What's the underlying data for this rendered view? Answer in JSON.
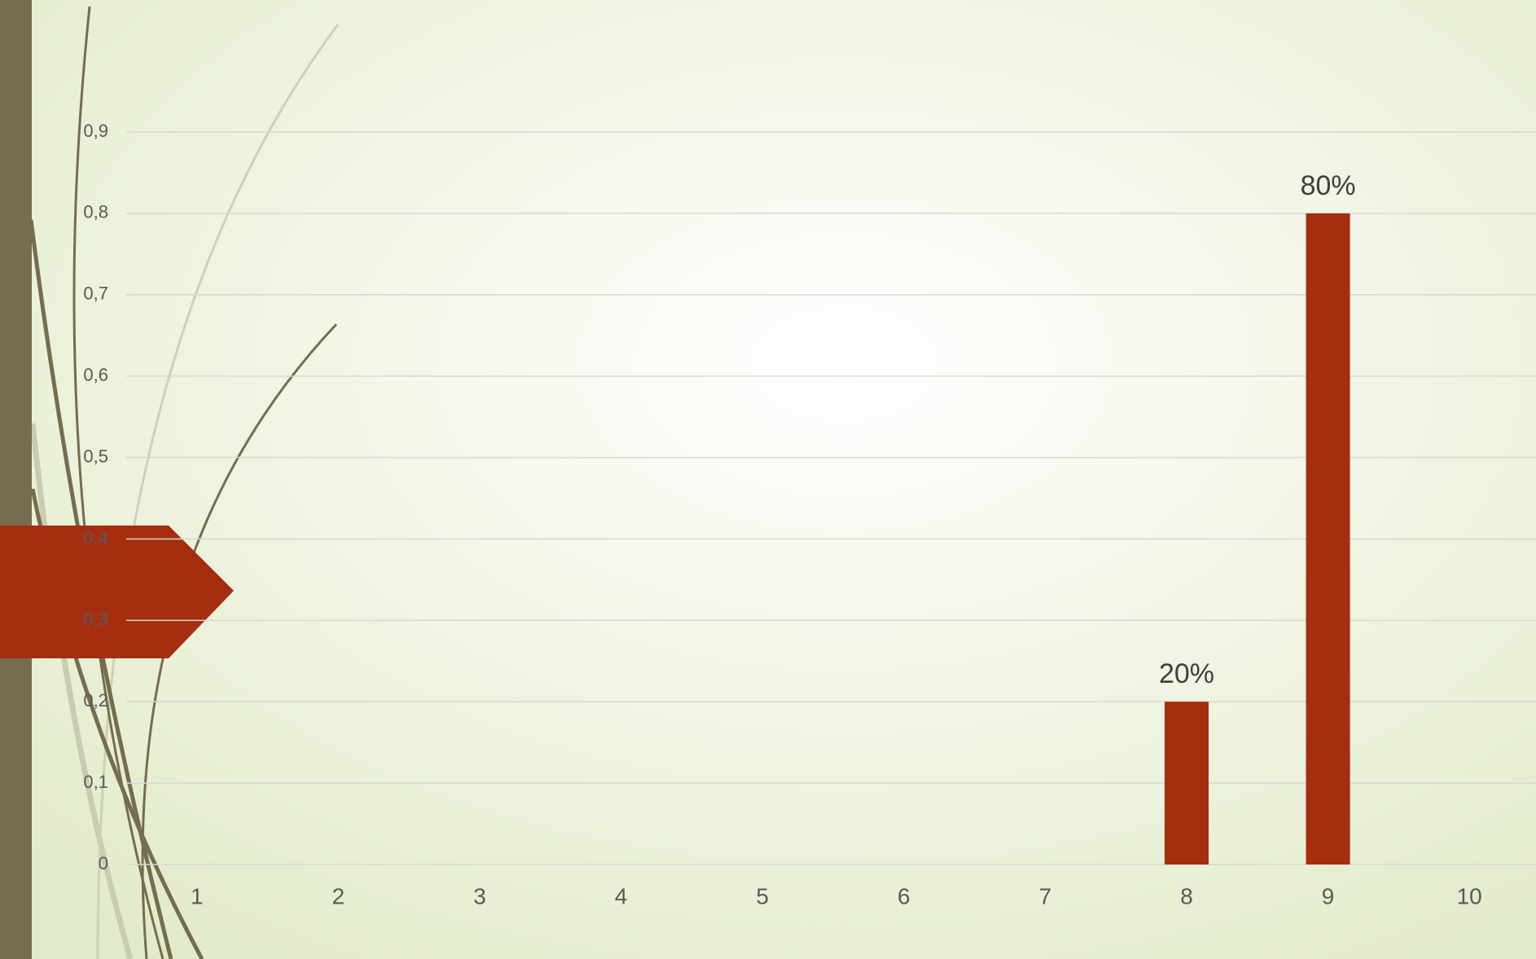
{
  "chart_data": {
    "type": "bar",
    "categories": [
      "1",
      "2",
      "3",
      "4",
      "5",
      "6",
      "7",
      "8",
      "9",
      "10"
    ],
    "values": [
      null,
      null,
      null,
      null,
      null,
      null,
      null,
      0.2,
      0.8,
      null
    ],
    "value_labels": [
      null,
      null,
      null,
      null,
      null,
      null,
      null,
      "20%",
      "80%",
      null
    ],
    "color": "#a52d10",
    "ylim": [
      0,
      0.9
    ],
    "yticks": [
      0,
      {
        "value": 0.1,
        "label": "0,1"
      },
      {
        "value": 0.2,
        "label": "0,2"
      },
      {
        "value": 0.3,
        "label": "0,3"
      },
      {
        "value": 0.4,
        "label": "0,4"
      },
      {
        "value": 0.5,
        "label": "0,5"
      },
      {
        "value": 0.6,
        "label": "0,6"
      },
      {
        "value": 0.7,
        "label": "0,7"
      },
      {
        "value": 0.8,
        "label": "0,8"
      },
      {
        "value": 0.9,
        "label": "0,9"
      }
    ],
    "grid": true
  }
}
